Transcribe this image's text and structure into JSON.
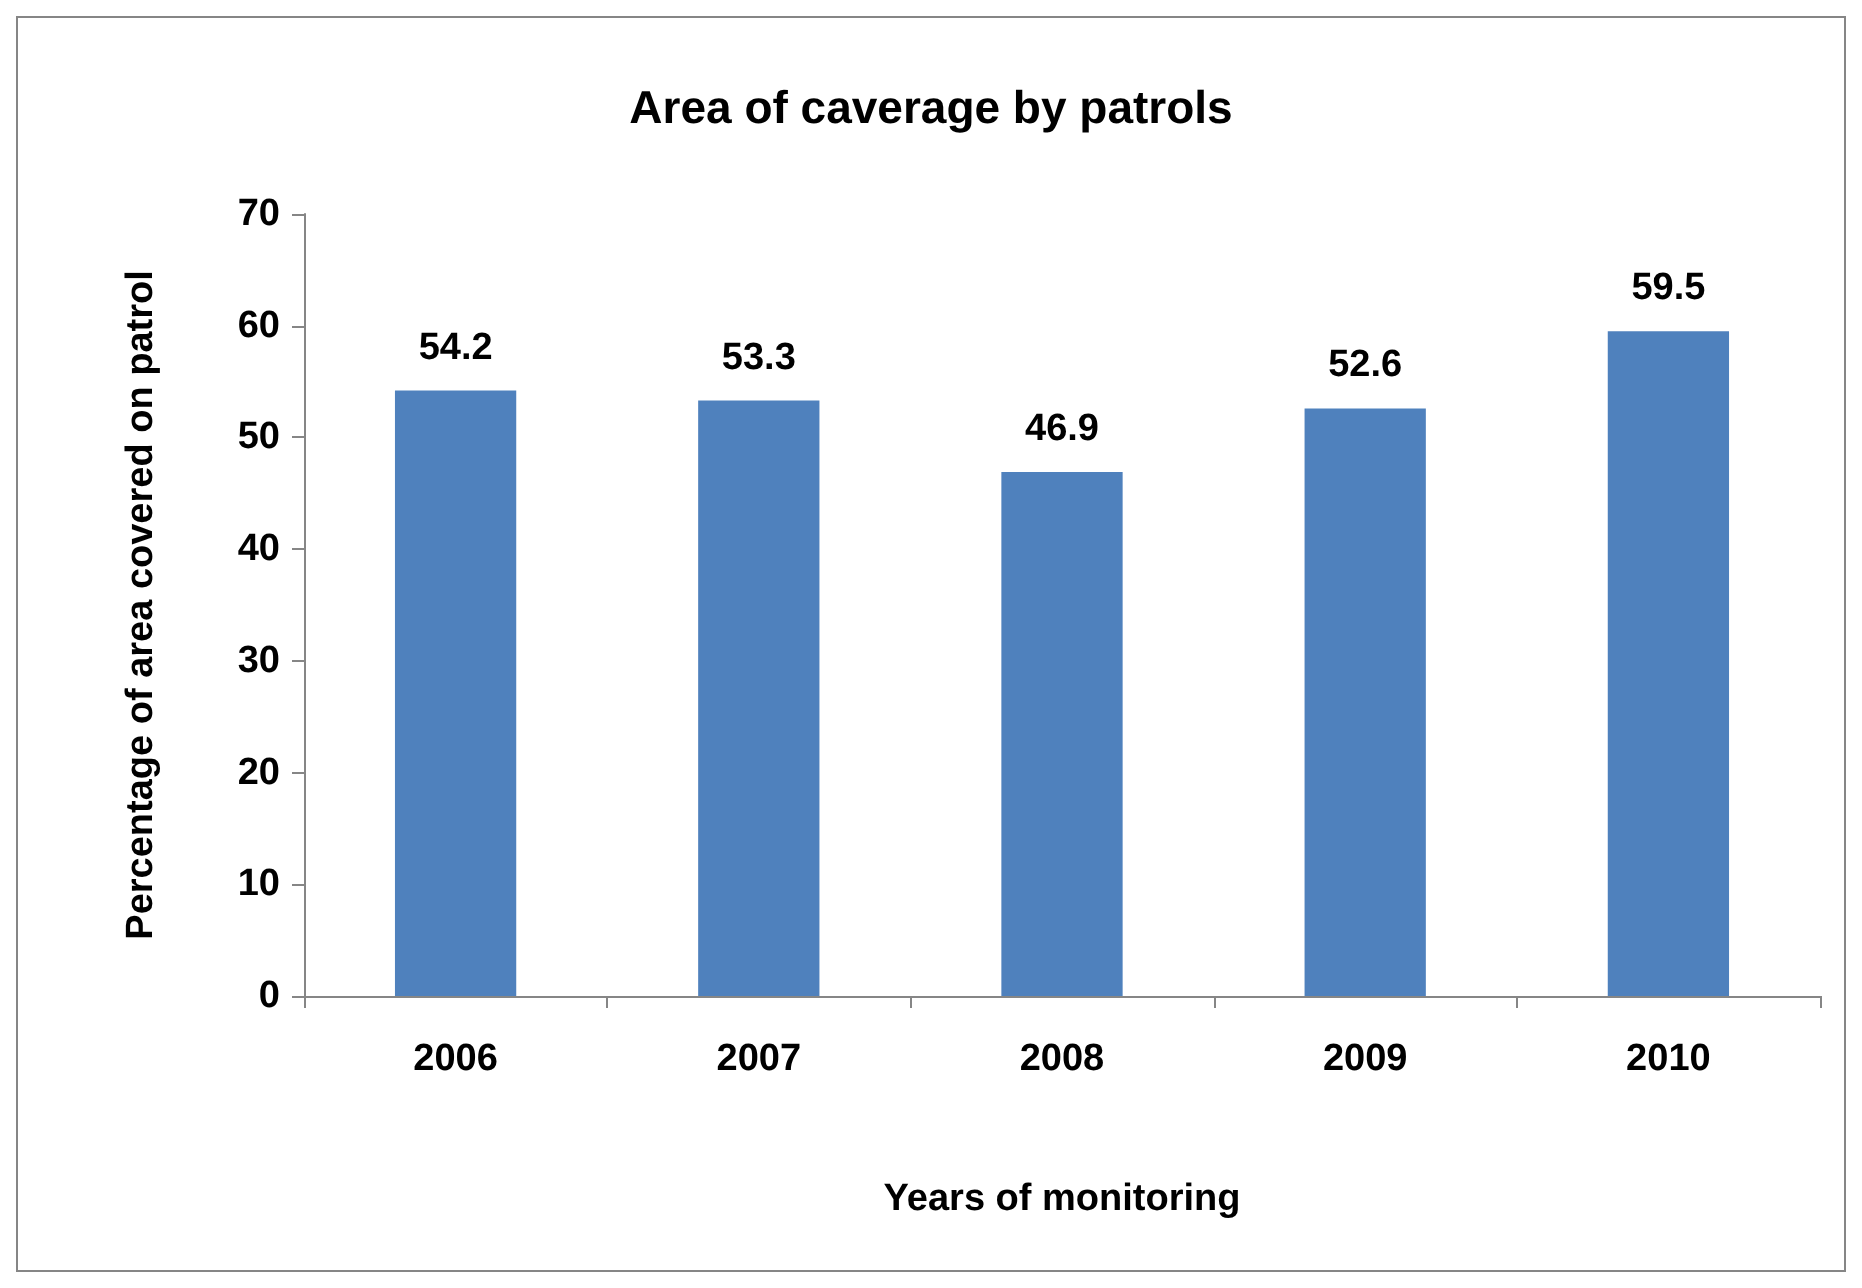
{
  "chart_data": {
    "type": "bar",
    "title": "Area of caverage by patrols",
    "xlabel": "Years of monitoring",
    "ylabel": "Percentage of area covered on patrol",
    "categories": [
      "2006",
      "2007",
      "2008",
      "2009",
      "2010"
    ],
    "values": [
      54.2,
      53.3,
      46.9,
      52.6,
      59.5
    ],
    "color": "#4f81bd",
    "ylim": [
      0,
      70
    ],
    "yticks": [
      0,
      10,
      20,
      30,
      40,
      50,
      60,
      70
    ],
    "grid": false,
    "data_labels": true
  }
}
